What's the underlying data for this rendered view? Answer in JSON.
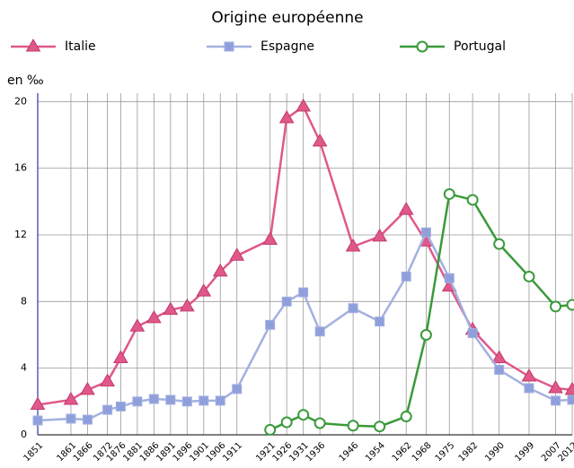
{
  "chart_data": {
    "type": "line",
    "title": "Origine européenne",
    "y_label": "en ‰",
    "x": [
      1851,
      1861,
      1866,
      1872,
      1876,
      1881,
      1886,
      1891,
      1896,
      1901,
      1906,
      1911,
      1921,
      1926,
      1931,
      1936,
      1946,
      1954,
      1962,
      1968,
      1975,
      1982,
      1990,
      1999,
      2007,
      2012
    ],
    "xlim": [
      1851,
      2012
    ],
    "xticks": [
      1851,
      1861,
      1866,
      1872,
      1876,
      1881,
      1886,
      1891,
      1896,
      1901,
      1906,
      1911,
      1921,
      1926,
      1931,
      1936,
      1946,
      1954,
      1962,
      1968,
      1975,
      1982,
      1990,
      1999,
      2007,
      2012
    ],
    "ylim": [
      0,
      20.5
    ],
    "yticks": [
      0,
      4,
      8,
      12,
      16,
      20
    ],
    "grid": true,
    "series": [
      {
        "name": "Italie",
        "color": "#e0588a",
        "marker": "triangle",
        "values": [
          1.8,
          2.1,
          2.7,
          3.2,
          4.6,
          6.5,
          7.0,
          7.5,
          7.7,
          8.6,
          9.8,
          10.75,
          11.7,
          19.0,
          19.7,
          17.6,
          11.3,
          11.9,
          13.5,
          11.6,
          8.9,
          6.3,
          4.6,
          3.5,
          2.8,
          2.7
        ]
      },
      {
        "name": "Espagne",
        "color": "#a3b0e0",
        "marker": "square",
        "values": [
          0.86,
          0.97,
          0.91,
          1.5,
          1.7,
          2.0,
          2.15,
          2.1,
          2.0,
          2.05,
          2.05,
          2.75,
          6.6,
          8.0,
          8.55,
          6.2,
          7.6,
          6.8,
          9.5,
          12.15,
          9.4,
          6.1,
          3.9,
          2.8,
          2.05,
          2.1
        ]
      },
      {
        "name": "Portugal",
        "color": "#3a9a3a",
        "marker": "circle",
        "values": [
          null,
          null,
          null,
          null,
          null,
          null,
          null,
          null,
          null,
          null,
          null,
          null,
          0.3,
          0.75,
          1.2,
          0.7,
          0.55,
          0.5,
          1.1,
          6.0,
          14.45,
          14.1,
          11.45,
          9.5,
          7.7,
          7.8
        ]
      }
    ]
  }
}
